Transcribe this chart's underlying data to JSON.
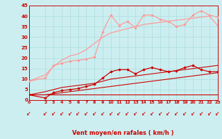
{
  "x": [
    0,
    2,
    3,
    4,
    5,
    6,
    7,
    8,
    9,
    10,
    11,
    12,
    13,
    14,
    15,
    16,
    17,
    18,
    19,
    20,
    21,
    22,
    23
  ],
  "line3_y": [
    9.0,
    10.5,
    16.5,
    17.5,
    18.5,
    19.0,
    19.5,
    20.5,
    32.5,
    40.5,
    35.5,
    37.5,
    34.5,
    40.5,
    40.5,
    38.5,
    37.5,
    35.0,
    36.0,
    40.5,
    42.5,
    40.5,
    39.5
  ],
  "line4_y": [
    9.0,
    12.0,
    16.0,
    19.0,
    21.0,
    22.0,
    24.0,
    27.0,
    30.0,
    32.0,
    33.0,
    34.0,
    35.0,
    36.0,
    36.5,
    37.0,
    37.5,
    38.0,
    38.5,
    39.0,
    39.5,
    40.0,
    35.5
  ],
  "line1_y": [
    2.5,
    1.0,
    3.5,
    4.5,
    5.0,
    5.5,
    6.5,
    7.5,
    10.5,
    13.5,
    14.5,
    14.5,
    12.5,
    14.5,
    15.5,
    14.5,
    13.5,
    14.0,
    15.5,
    16.5,
    14.5,
    13.5,
    13.5
  ],
  "line2_y": [
    2.5,
    4.0,
    5.0,
    6.0,
    6.5,
    7.0,
    7.5,
    8.0,
    9.0,
    10.0,
    10.5,
    11.0,
    11.5,
    12.0,
    12.5,
    13.0,
    13.5,
    14.0,
    14.5,
    15.0,
    15.5,
    16.0,
    16.5
  ],
  "line5_y": [
    2.5,
    2.5,
    2.5,
    2.5,
    2.5,
    2.5,
    2.5,
    2.5,
    2.5,
    2.5,
    2.5,
    2.5,
    2.5,
    2.5,
    2.5,
    2.5,
    2.5,
    2.5,
    2.5,
    2.5,
    2.5,
    2.5,
    2.5
  ],
  "line6_y": [
    2.5,
    2.5,
    3.0,
    3.5,
    4.0,
    4.5,
    5.0,
    5.5,
    6.0,
    6.5,
    7.0,
    7.5,
    8.0,
    8.5,
    9.0,
    9.5,
    10.0,
    10.5,
    11.0,
    11.5,
    12.0,
    12.5,
    13.0
  ],
  "bg_color": "#cceef0",
  "grid_color": "#aadddd",
  "line_dark_red": "#cc0000",
  "line_light_red": "#ff9999",
  "line_medium_red": "#dd4444",
  "ylabel_ticks": [
    0,
    5,
    10,
    15,
    20,
    25,
    30,
    35,
    40,
    45
  ],
  "xticks": [
    0,
    2,
    3,
    4,
    5,
    6,
    7,
    8,
    9,
    10,
    11,
    12,
    13,
    14,
    15,
    16,
    17,
    18,
    19,
    20,
    21,
    22,
    23
  ],
  "xlabel": "Vent moyen/en rafales ( km/h )",
  "xlim": [
    0,
    23
  ],
  "ylim": [
    0,
    45
  ]
}
